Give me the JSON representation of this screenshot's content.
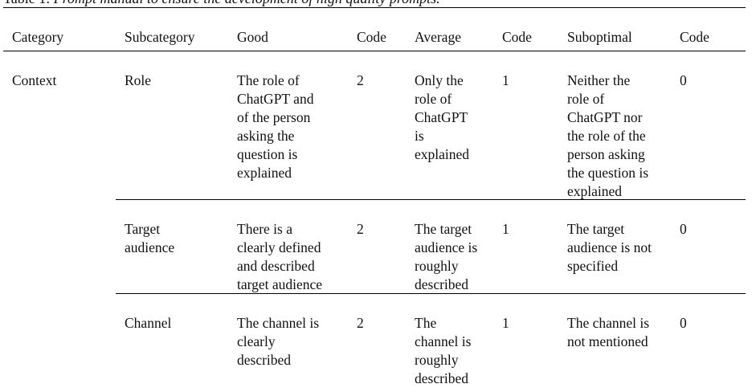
{
  "caption": {
    "label": "Table 1: ",
    "text": "Prompt manual to ensure the development of high quality prompts."
  },
  "table": {
    "headers": [
      "Category",
      "Subcategory",
      "Good",
      "Code",
      "Average",
      "Code",
      "Suboptimal",
      "Code"
    ],
    "category": "Context",
    "rows": [
      {
        "subcategory": "Role",
        "good": " The role of\nChatGPT and\nof the person\nasking the\nquestion is\nexplained",
        "good_code": "2",
        "average": "Only the\nrole of\nChatGPT\nis\nexplained",
        "average_code": "1",
        "suboptimal": "Neither the\nrole of\nChatGPT nor\nthe role of the\nperson asking\nthe question is\nexplained",
        "suboptimal_code": "0"
      },
      {
        "subcategory": "Target\naudience",
        "good": "There is a\nclearly defined\nand described\ntarget audience",
        "good_code": "2",
        "average": "The target\naudience is\nroughly\ndescribed",
        "average_code": "1",
        "suboptimal": "The target\naudience is not\nspecified",
        "suboptimal_code": "0"
      },
      {
        "subcategory": "Channel",
        "good": "The channel is\nclearly\ndescribed",
        "good_code": "2",
        "average": "The\nchannel is\nroughly\ndescribed",
        "average_code": "1",
        "suboptimal": "The channel is\nnot mentioned",
        "suboptimal_code": "0"
      }
    ]
  }
}
